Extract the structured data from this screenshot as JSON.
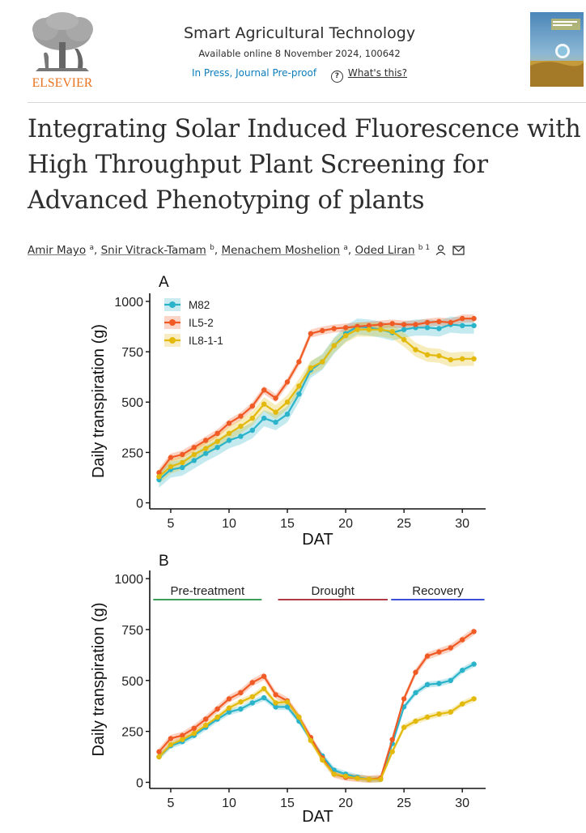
{
  "header": {
    "logo_text": "ELSEVIER",
    "journal_title": "Smart Agricultural Technology",
    "availability": "Available online 8 November 2024, 100642",
    "status_link": "In Press, Journal Pre-proof",
    "help_link": "What's this?",
    "cover_icon": "journal-cover-image"
  },
  "article": {
    "title": "Integrating Solar Induced Fluorescence with High Throughput Plant Screening for Advanced Phenotyping of plants",
    "authors": [
      {
        "name": "Amir Mayo",
        "aff": "a"
      },
      {
        "name": "Snir Vitrack-Tamam",
        "aff": "b"
      },
      {
        "name": "Menachem Moshelion",
        "aff": "a"
      },
      {
        "name": "Oded Liran",
        "aff": "b 1"
      }
    ],
    "separator": ",",
    "author_icons": [
      "person-icon",
      "mail-icon"
    ]
  },
  "colors": {
    "M82": "#2ab3c9",
    "IL5-2": "#f05a24",
    "IL8-1-1": "#e3b90b",
    "link": "#0c7dbb",
    "elsevier": "#e9711c"
  },
  "chart_data": [
    {
      "panel": "A",
      "type": "line",
      "xlabel": "DAT",
      "ylabel": "Daily transpiration (g)",
      "xticks": [
        5,
        10,
        15,
        20,
        25,
        30
      ],
      "yticks": [
        0,
        250,
        500,
        750,
        1000
      ],
      "xlim": [
        3.2,
        32
      ],
      "ylim": [
        -30,
        1040
      ],
      "legend": "top-left",
      "series": [
        {
          "name": "M82",
          "x": [
            4,
            5,
            6,
            7,
            8,
            9,
            10,
            11,
            12,
            13,
            14,
            15,
            16,
            17,
            18,
            19,
            20,
            21,
            22,
            23,
            24,
            25,
            26,
            27,
            28,
            29,
            30,
            31
          ],
          "values": [
            115,
            165,
            175,
            210,
            245,
            275,
            310,
            330,
            360,
            420,
            400,
            440,
            540,
            660,
            700,
            780,
            840,
            875,
            870,
            860,
            845,
            860,
            870,
            870,
            865,
            885,
            880,
            880
          ],
          "band": 40
        },
        {
          "name": "IL5-2",
          "x": [
            4,
            5,
            6,
            7,
            8,
            9,
            10,
            11,
            12,
            13,
            14,
            15,
            16,
            17,
            18,
            19,
            20,
            21,
            22,
            23,
            24,
            25,
            26,
            27,
            28,
            29,
            30,
            31
          ],
          "values": [
            150,
            225,
            240,
            275,
            310,
            345,
            395,
            430,
            480,
            560,
            520,
            600,
            700,
            840,
            855,
            865,
            870,
            875,
            880,
            885,
            890,
            885,
            885,
            895,
            900,
            895,
            915,
            915
          ],
          "band": 20
        },
        {
          "name": "IL8-1-1",
          "x": [
            4,
            5,
            6,
            7,
            8,
            9,
            10,
            11,
            12,
            13,
            14,
            15,
            16,
            17,
            18,
            19,
            20,
            21,
            22,
            23,
            24,
            25,
            26,
            27,
            28,
            29,
            30,
            31
          ],
          "values": [
            130,
            180,
            200,
            240,
            270,
            305,
            345,
            380,
            420,
            490,
            450,
            500,
            580,
            670,
            700,
            780,
            830,
            860,
            860,
            860,
            850,
            810,
            760,
            735,
            730,
            710,
            715,
            715
          ],
          "band": 35
        }
      ]
    },
    {
      "panel": "B",
      "type": "line",
      "xlabel": "DAT",
      "ylabel": "Daily transpiration (g)",
      "xticks": [
        5,
        10,
        15,
        20,
        25,
        30
      ],
      "yticks": [
        0,
        250,
        500,
        750,
        1000
      ],
      "xlim": [
        3.2,
        32
      ],
      "ylim": [
        -30,
        1040
      ],
      "phases": [
        {
          "label": "Pre-treatment",
          "from": 3.5,
          "to": 12.8,
          "color": "#3aa05a"
        },
        {
          "label": "Drought",
          "from": 14.2,
          "to": 23.6,
          "color": "#b03a48"
        },
        {
          "label": "Recovery",
          "from": 23.9,
          "to": 31.9,
          "color": "#3a4fd6"
        }
      ],
      "series": [
        {
          "name": "M82",
          "x": [
            4,
            5,
            6,
            7,
            8,
            9,
            10,
            11,
            12,
            13,
            14,
            15,
            16,
            17,
            18,
            19,
            20,
            21,
            22,
            23,
            24,
            25,
            26,
            27,
            28,
            29,
            30,
            31
          ],
          "values": [
            125,
            180,
            200,
            230,
            270,
            310,
            345,
            360,
            390,
            415,
            370,
            370,
            300,
            210,
            130,
            60,
            40,
            25,
            15,
            15,
            190,
            370,
            440,
            480,
            485,
            500,
            550,
            580
          ],
          "band": 15
        },
        {
          "name": "IL5-2",
          "x": [
            4,
            5,
            6,
            7,
            8,
            9,
            10,
            11,
            12,
            13,
            14,
            15,
            16,
            17,
            18,
            19,
            20,
            21,
            22,
            23,
            24,
            25,
            26,
            27,
            28,
            29,
            30,
            31
          ],
          "values": [
            150,
            215,
            230,
            265,
            310,
            360,
            410,
            440,
            490,
            520,
            430,
            400,
            320,
            220,
            120,
            40,
            25,
            20,
            15,
            20,
            210,
            410,
            540,
            620,
            640,
            660,
            700,
            740
          ],
          "band": 18
        },
        {
          "name": "IL8-1-1",
          "x": [
            4,
            5,
            6,
            7,
            8,
            9,
            10,
            11,
            12,
            13,
            14,
            15,
            16,
            17,
            18,
            19,
            20,
            21,
            22,
            23,
            24,
            25,
            26,
            27,
            28,
            29,
            30,
            31
          ],
          "values": [
            125,
            185,
            210,
            240,
            280,
            320,
            365,
            395,
            420,
            460,
            390,
            395,
            320,
            205,
            110,
            40,
            30,
            20,
            15,
            15,
            150,
            270,
            300,
            320,
            335,
            345,
            385,
            410
          ],
          "band": 15
        }
      ]
    }
  ]
}
